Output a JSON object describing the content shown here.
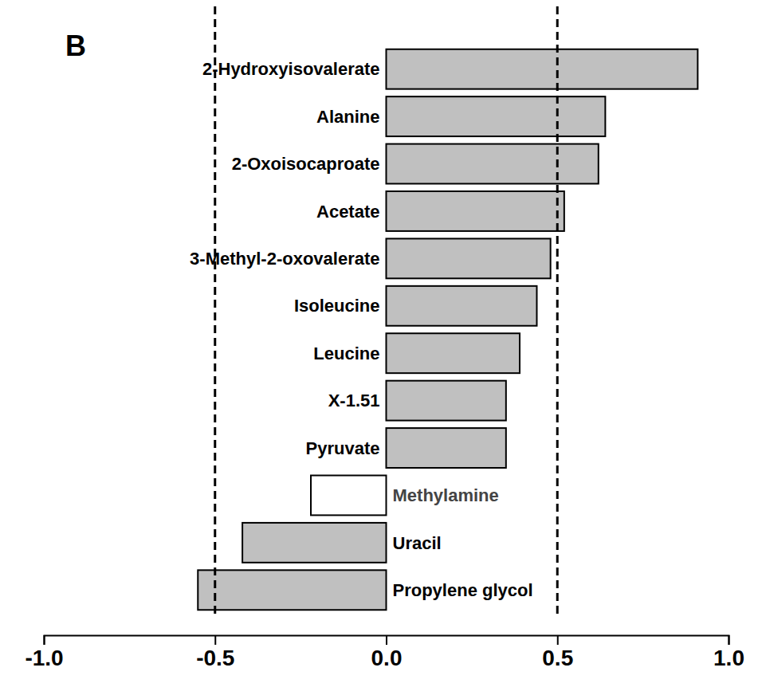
{
  "chart_data": {
    "type": "bar",
    "title": "B",
    "orientation": "horizontal",
    "categories": [
      "2-Hydroxyisovalerate",
      "Alanine",
      "2-Oxoisocaproate",
      "Acetate",
      "3-Methyl-2-oxovalerate",
      "Isoleucine",
      "Leucine",
      "X-1.51",
      "Pyruvate",
      "Methylamine",
      "Uracil",
      "Propylene glycol"
    ],
    "values": [
      0.91,
      0.64,
      0.62,
      0.52,
      0.48,
      0.44,
      0.39,
      0.35,
      0.35,
      -0.22,
      -0.42,
      -0.55
    ],
    "colors": [
      "#c0c0c0",
      "#c0c0c0",
      "#c0c0c0",
      "#c0c0c0",
      "#c0c0c0",
      "#c0c0c0",
      "#c0c0c0",
      "#c0c0c0",
      "#c0c0c0",
      "#ffffff",
      "#c0c0c0",
      "#c0c0c0"
    ],
    "xlim": [
      -1,
      1
    ],
    "xticks": [
      {
        "value": -1,
        "label": "-1.0"
      },
      {
        "value": -0.5,
        "label": "-0.5"
      },
      {
        "value": 0,
        "label": "0.0"
      },
      {
        "value": 0.5,
        "label": "0.5"
      },
      {
        "value": 1,
        "label": "1.0"
      }
    ],
    "reference_lines": [
      -0.5,
      0.5
    ],
    "grid": false
  }
}
